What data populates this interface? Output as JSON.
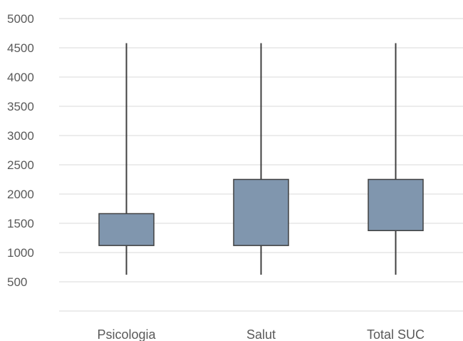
{
  "chart_data": {
    "type": "boxplot",
    "title": "",
    "xlabel": "",
    "ylabel": "",
    "categories": [
      "Psicologia",
      "Salut",
      "Total SUC"
    ],
    "whisker_low": [
      620,
      620,
      620
    ],
    "q1": [
      1120,
      1120,
      1375
    ],
    "q3": [
      1665,
      2250,
      2250
    ],
    "whisker_high": [
      4580,
      4580,
      4580
    ],
    "yticks": [
      "500",
      "1000",
      "1500",
      "2000",
      "2500",
      "3000",
      "3500",
      "4000",
      "4500",
      "5000"
    ],
    "ylim": [
      0,
      5000
    ],
    "grid": true,
    "legend": "none",
    "box_color": "#8096ae",
    "box_border_color": "#404040",
    "whisker_color": "#404040",
    "grid_color": "#d9d9d9"
  }
}
